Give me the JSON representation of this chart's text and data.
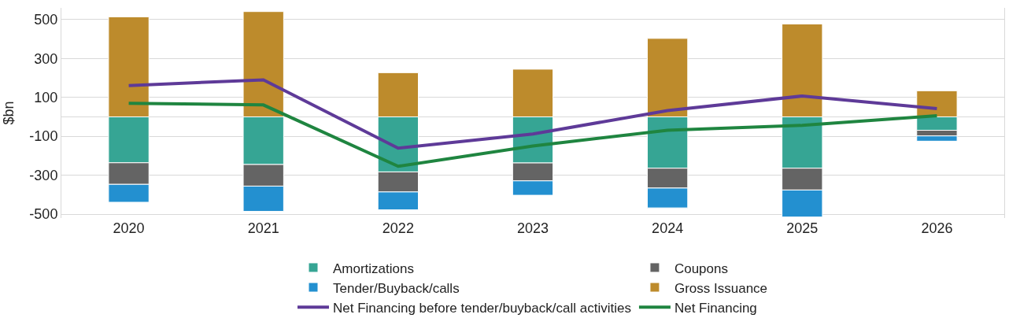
{
  "chart_data": {
    "type": "bar",
    "stacked": true,
    "ylabel": "$bn",
    "categories": [
      "2020",
      "2021",
      "2022",
      "2023",
      "2024",
      "2025",
      "2026"
    ],
    "series": [
      {
        "name": "Amortizations",
        "color": "#36a594",
        "values": [
          -236,
          -245,
          -283,
          -237,
          -264,
          -264,
          -69
        ]
      },
      {
        "name": "Coupons",
        "color": "#646464",
        "values": [
          -111,
          -111,
          -103,
          -92,
          -102,
          -112,
          -29
        ]
      },
      {
        "name": "Tender/Buyback/calls",
        "color": "#2390d0",
        "values": [
          -92,
          -130,
          -92,
          -74,
          -102,
          -139,
          -27
        ]
      },
      {
        "name": "Gross Issuance",
        "color": "#bd8b2c",
        "values": [
          514,
          541,
          227,
          245,
          403,
          477,
          134
        ]
      },
      {
        "name": "Net Financing before tender/buyback/call activities",
        "type": "line",
        "color": "#5e3a98",
        "values": [
          161,
          190,
          -161,
          -88,
          32,
          107,
          42
        ]
      },
      {
        "name": "Net Financing",
        "type": "line",
        "color": "#1f8540",
        "values": [
          70,
          61,
          -254,
          -150,
          -69,
          -44,
          6
        ]
      }
    ],
    "ylim": [
      -520,
      560
    ],
    "yticks": [
      -500,
      -300,
      -100,
      {
        "value": 0,
        "label": null
      },
      100,
      300,
      500
    ],
    "grid": "y",
    "legend": "bottom",
    "marker": "none",
    "line_style": "solid"
  }
}
